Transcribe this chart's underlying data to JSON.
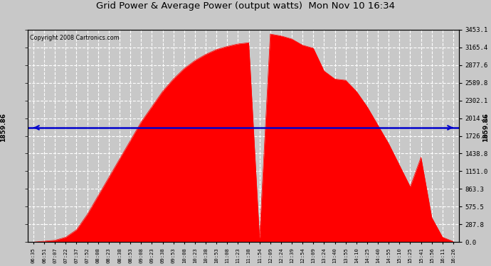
{
  "title": "Grid Power & Average Power (output watts)  Mon Nov 10 16:34",
  "copyright": "Copyright 2008 Cartronics.com",
  "avg_power": 1859.86,
  "ymax": 3453.1,
  "yticks": [
    0.0,
    287.8,
    575.5,
    863.3,
    1151.0,
    1438.8,
    1726.6,
    2014.3,
    2302.1,
    2589.8,
    2877.6,
    3165.4,
    3453.1
  ],
  "background_color": "#c8c8c8",
  "plot_bg_color": "#c8c8c8",
  "fill_color": "#ff0000",
  "line_color": "#ff0000",
  "avg_line_color": "#0000cc",
  "grid_color": "#ffffff",
  "title_color": "#000000",
  "x_labels": [
    "06:35",
    "06:51",
    "07:07",
    "07:22",
    "07:37",
    "07:52",
    "08:08",
    "08:23",
    "08:38",
    "08:53",
    "09:08",
    "09:23",
    "09:38",
    "09:53",
    "10:08",
    "10:23",
    "10:38",
    "10:53",
    "11:08",
    "11:23",
    "11:38",
    "11:54",
    "12:09",
    "12:24",
    "12:39",
    "12:54",
    "13:09",
    "13:24",
    "13:40",
    "13:55",
    "14:10",
    "14:25",
    "14:40",
    "14:55",
    "15:10",
    "15:25",
    "15:41",
    "15:56",
    "16:11",
    "16:26"
  ],
  "power_values": [
    0,
    15,
    30,
    80,
    200,
    450,
    750,
    1050,
    1350,
    1650,
    1950,
    2200,
    2450,
    2650,
    2820,
    2950,
    3050,
    3130,
    3180,
    3220,
    3240,
    60,
    3380,
    3350,
    3300,
    3200,
    3150,
    2780,
    2650,
    2630,
    2450,
    2200,
    1900,
    1600,
    1250,
    900,
    1380,
    400,
    80,
    10
  ]
}
